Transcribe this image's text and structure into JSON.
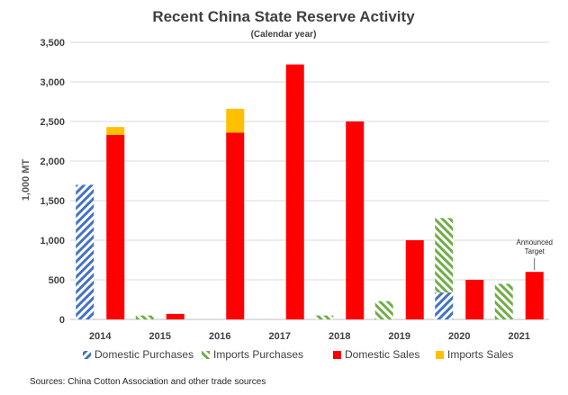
{
  "chart_data": {
    "type": "bar",
    "title": "Recent China State Reserve Activity",
    "subtitle": "(Calendar year)",
    "ylabel": "1,000 MT",
    "ylim": [
      0,
      3500
    ],
    "yticks": [
      0,
      500,
      1000,
      1500,
      2000,
      2500,
      3000,
      3500
    ],
    "ytick_labels": [
      "0",
      "500",
      "1,000",
      "1,500",
      "2,000",
      "2,500",
      "3,000",
      "3,500"
    ],
    "categories": [
      "2014",
      "2015",
      "2016",
      "2017",
      "2018",
      "2019",
      "2020",
      "2021"
    ],
    "series": [
      {
        "name": "Domestic Purchases",
        "values": [
          1700,
          0,
          0,
          0,
          0,
          0,
          340,
          0
        ],
        "color": "#4472c4",
        "pattern": "hatch",
        "stack": "purchases"
      },
      {
        "name": "Imports Purchases",
        "values": [
          0,
          50,
          0,
          0,
          50,
          230,
          940,
          450
        ],
        "color": "#70ad47",
        "pattern": "hatch",
        "stack": "purchases"
      },
      {
        "name": "Domestic Sales",
        "values": [
          2330,
          70,
          2360,
          3220,
          2500,
          1000,
          500,
          600
        ],
        "color": "#ff0000",
        "pattern": "solid",
        "stack": "sales"
      },
      {
        "name": "Imports Sales",
        "values": [
          100,
          0,
          300,
          0,
          0,
          0,
          0,
          0
        ],
        "color": "#ffc000",
        "pattern": "solid",
        "stack": "sales"
      }
    ],
    "annotation": {
      "category": "2021",
      "lines": [
        "Announced",
        "Target"
      ]
    },
    "grid": true,
    "legend_position": "bottom",
    "source": "Sources: China Cotton Association and other trade sources"
  }
}
